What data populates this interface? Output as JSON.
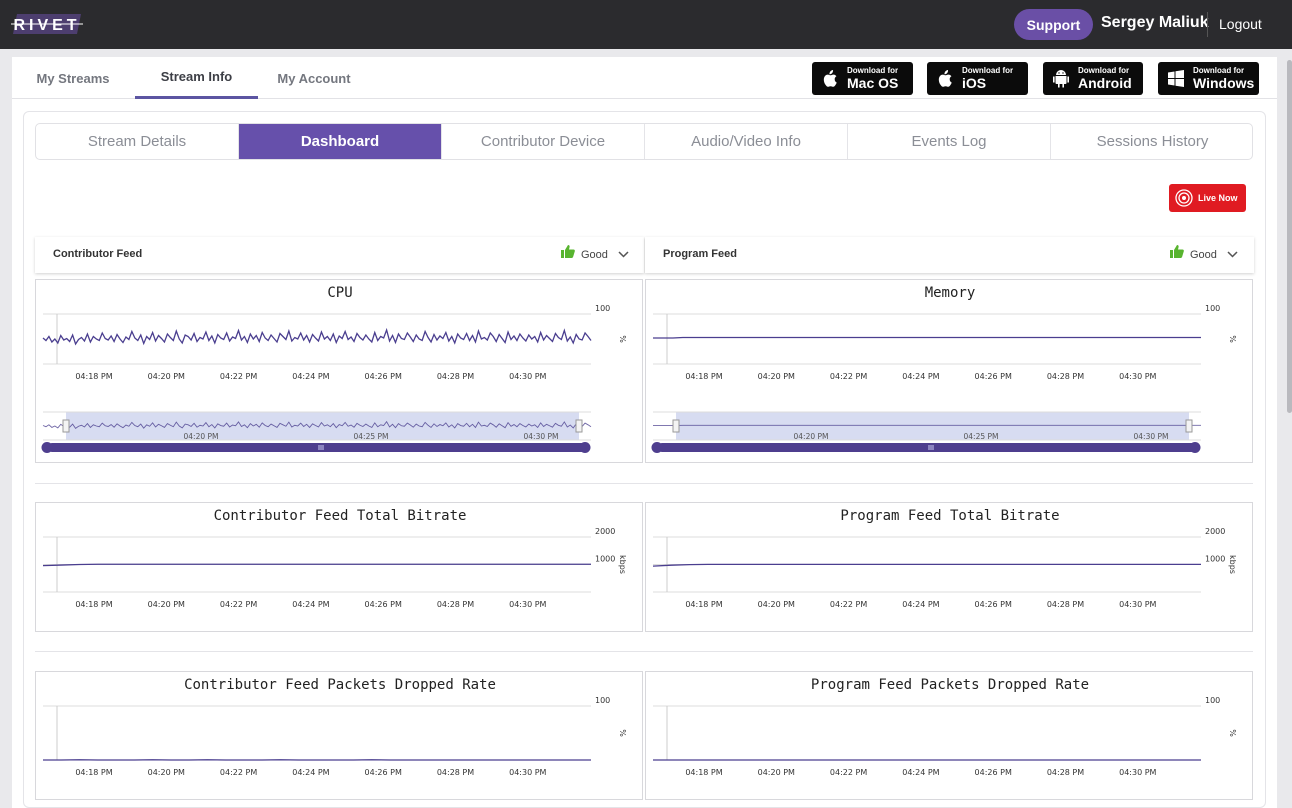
{
  "header": {
    "logo_text": "RIVET",
    "support_label": "Support",
    "user_name": "Sergey Maliuk",
    "logout_label": "Logout"
  },
  "nav_tabs": [
    {
      "label": "My Streams",
      "active": false
    },
    {
      "label": "Stream Info",
      "active": true
    },
    {
      "label": "My Account",
      "active": false
    }
  ],
  "downloads": [
    {
      "small": "Download for",
      "big": "Mac OS",
      "icon": "apple-icon"
    },
    {
      "small": "Download for",
      "big": "iOS",
      "icon": "apple-icon"
    },
    {
      "small": "Download for",
      "big": "Android",
      "icon": "android-icon"
    },
    {
      "small": "Download for",
      "big": "Windows",
      "icon": "windows-icon"
    }
  ],
  "sub_tabs": [
    {
      "label": "Stream Details",
      "active": false
    },
    {
      "label": "Dashboard",
      "active": true
    },
    {
      "label": "Contributor Device",
      "active": false
    },
    {
      "label": "Audio/Video Info",
      "active": false
    },
    {
      "label": "Events Log",
      "active": false
    },
    {
      "label": "Sessions History",
      "active": false
    }
  ],
  "live_button": {
    "label": "Live Now"
  },
  "feeds": [
    {
      "title": "Contributor Feed",
      "status": "Good"
    },
    {
      "title": "Program Feed",
      "status": "Good"
    }
  ],
  "colors": {
    "accent": "#6650ab",
    "line": "#4a3e8f",
    "live": "#e01b22",
    "good": "#58b42f"
  },
  "chart_data": [
    {
      "id": "cpu",
      "type": "line",
      "title": "CPU",
      "ylabel": "%",
      "y_ticks": [
        100
      ],
      "ylim": [
        0,
        100
      ],
      "x_ticks": [
        "04:18 PM",
        "04:20 PM",
        "04:22 PM",
        "04:24 PM",
        "04:26 PM",
        "04:28 PM",
        "04:30 PM"
      ],
      "series": [
        {
          "values": [
            52,
            47,
            55,
            44,
            50,
            42,
            57,
            48,
            51,
            45,
            58,
            40,
            49,
            53,
            46,
            60,
            44,
            55,
            50,
            47,
            62,
            51,
            48,
            56,
            45,
            59,
            50,
            43,
            54,
            49,
            65,
            52,
            47,
            58,
            41,
            55,
            49,
            63,
            46,
            57,
            51,
            44,
            60,
            53,
            47,
            66,
            50,
            42,
            58,
            55,
            48,
            61,
            45,
            53,
            50,
            64,
            47,
            56,
            42,
            59,
            52,
            49,
            62,
            46,
            54,
            51,
            67,
            48,
            55,
            43,
            60,
            50,
            57,
            45,
            63,
            52,
            47,
            58,
            51,
            44,
            61,
            55,
            49,
            66,
            46,
            53,
            50,
            62,
            48,
            57,
            44,
            59,
            52,
            46,
            64,
            50,
            55,
            47,
            60,
            43,
            56,
            51,
            65,
            49,
            54,
            45,
            61,
            53,
            48,
            58,
            50,
            44,
            63,
            47,
            55,
            52,
            68,
            46,
            57,
            43,
            60,
            51,
            49,
            62,
            54,
            45,
            58,
            50,
            47,
            65,
            53,
            44,
            59,
            48,
            56,
            51,
            63,
            46,
            55,
            42,
            60,
            52,
            49,
            61,
            47,
            57,
            44,
            66,
            50,
            53,
            48,
            62,
            55,
            45,
            59,
            51,
            43,
            64,
            49,
            56,
            47,
            60,
            52,
            46,
            58,
            50,
            55,
            44,
            63,
            48,
            57,
            51,
            45,
            61,
            53,
            49,
            67,
            46,
            54,
            42,
            59,
            50,
            48,
            62,
            55,
            47
          ]
        }
      ],
      "navigator": {
        "x_ticks": [
          "04:20 PM",
          "04:25 PM",
          "04:30 PM"
        ]
      }
    },
    {
      "id": "memory",
      "type": "line",
      "title": "Memory",
      "ylabel": "%",
      "y_ticks": [
        100
      ],
      "ylim": [
        0,
        100
      ],
      "x_ticks": [
        "04:18 PM",
        "04:20 PM",
        "04:22 PM",
        "04:24 PM",
        "04:26 PM",
        "04:28 PM",
        "04:30 PM"
      ],
      "series": [
        {
          "values": [
            52,
            52,
            52,
            53,
            53,
            53,
            53,
            53,
            53,
            53,
            53,
            53,
            53,
            53,
            53,
            53,
            53,
            53,
            53,
            53,
            53,
            53,
            53,
            53,
            53,
            53,
            53,
            53,
            53,
            53,
            53,
            53,
            53,
            53,
            53,
            53,
            53,
            53,
            53,
            53,
            53,
            53,
            53,
            53,
            53,
            53,
            53,
            53,
            53,
            53,
            53,
            53,
            53,
            53,
            53,
            53
          ]
        }
      ],
      "navigator": {
        "x_ticks": [
          "04:20 PM",
          "04:25 PM",
          "04:30 PM"
        ]
      }
    },
    {
      "id": "contrib-bitrate",
      "type": "line",
      "title": "Contributor Feed Total Bitrate",
      "ylabel": "kbps",
      "y_ticks": [
        2000,
        1000
      ],
      "ylim": [
        0,
        2000
      ],
      "x_ticks": [
        "04:18 PM",
        "04:20 PM",
        "04:22 PM",
        "04:24 PM",
        "04:26 PM",
        "04:28 PM",
        "04:30 PM"
      ],
      "series": [
        {
          "values": [
            960,
            980,
            1000,
            1010,
            1010,
            1010,
            1010,
            1010,
            1010,
            1010,
            1010,
            1010,
            1010,
            1010,
            1010,
            1010,
            1010,
            1010,
            1010,
            1010,
            1010,
            1010,
            1010,
            1010,
            1010,
            1010,
            1010,
            1010,
            1010,
            1010,
            1010
          ]
        }
      ]
    },
    {
      "id": "program-bitrate",
      "type": "line",
      "title": "Program Feed Total Bitrate",
      "ylabel": "kbps",
      "y_ticks": [
        2000,
        1000
      ],
      "ylim": [
        0,
        2000
      ],
      "x_ticks": [
        "04:18 PM",
        "04:20 PM",
        "04:22 PM",
        "04:24 PM",
        "04:26 PM",
        "04:28 PM",
        "04:30 PM"
      ],
      "series": [
        {
          "values": [
            940,
            975,
            995,
            1005,
            1005,
            1005,
            1005,
            1005,
            1005,
            1005,
            1005,
            1005,
            1005,
            1005,
            1005,
            1005,
            1005,
            1005,
            1005,
            1005,
            1005,
            1005,
            1005,
            1005,
            1005,
            1005,
            1005,
            1005,
            1005,
            1005,
            1005
          ]
        }
      ]
    },
    {
      "id": "contrib-dropped",
      "type": "line",
      "title": "Contributor Feed Packets Dropped Rate",
      "ylabel": "%",
      "y_ticks": [
        100
      ],
      "ylim": [
        0,
        100
      ],
      "x_ticks": [
        "04:18 PM",
        "04:20 PM",
        "04:22 PM",
        "04:24 PM",
        "04:26 PM",
        "04:28 PM",
        "04:30 PM"
      ],
      "series": [
        {
          "values": [
            0,
            0,
            0.5,
            0,
            0,
            0,
            0.5,
            0,
            0,
            0.5,
            0,
            0,
            0,
            0.5,
            0,
            0,
            0,
            0,
            0.5,
            0,
            0,
            0,
            0,
            0,
            0,
            0,
            0,
            0,
            0,
            0,
            0
          ]
        }
      ]
    },
    {
      "id": "program-dropped",
      "type": "line",
      "title": "Program Feed Packets Dropped Rate",
      "ylabel": "%",
      "y_ticks": [
        100
      ],
      "ylim": [
        0,
        100
      ],
      "x_ticks": [
        "04:18 PM",
        "04:20 PM",
        "04:22 PM",
        "04:24 PM",
        "04:26 PM",
        "04:28 PM",
        "04:30 PM"
      ],
      "series": [
        {
          "values": [
            0,
            0,
            0,
            0,
            0,
            0,
            0,
            0,
            0,
            0,
            0,
            0,
            0,
            0,
            0,
            0,
            0,
            0,
            0,
            0,
            0,
            0,
            0,
            0,
            0,
            0,
            0,
            0,
            0,
            0,
            0
          ]
        }
      ]
    }
  ]
}
